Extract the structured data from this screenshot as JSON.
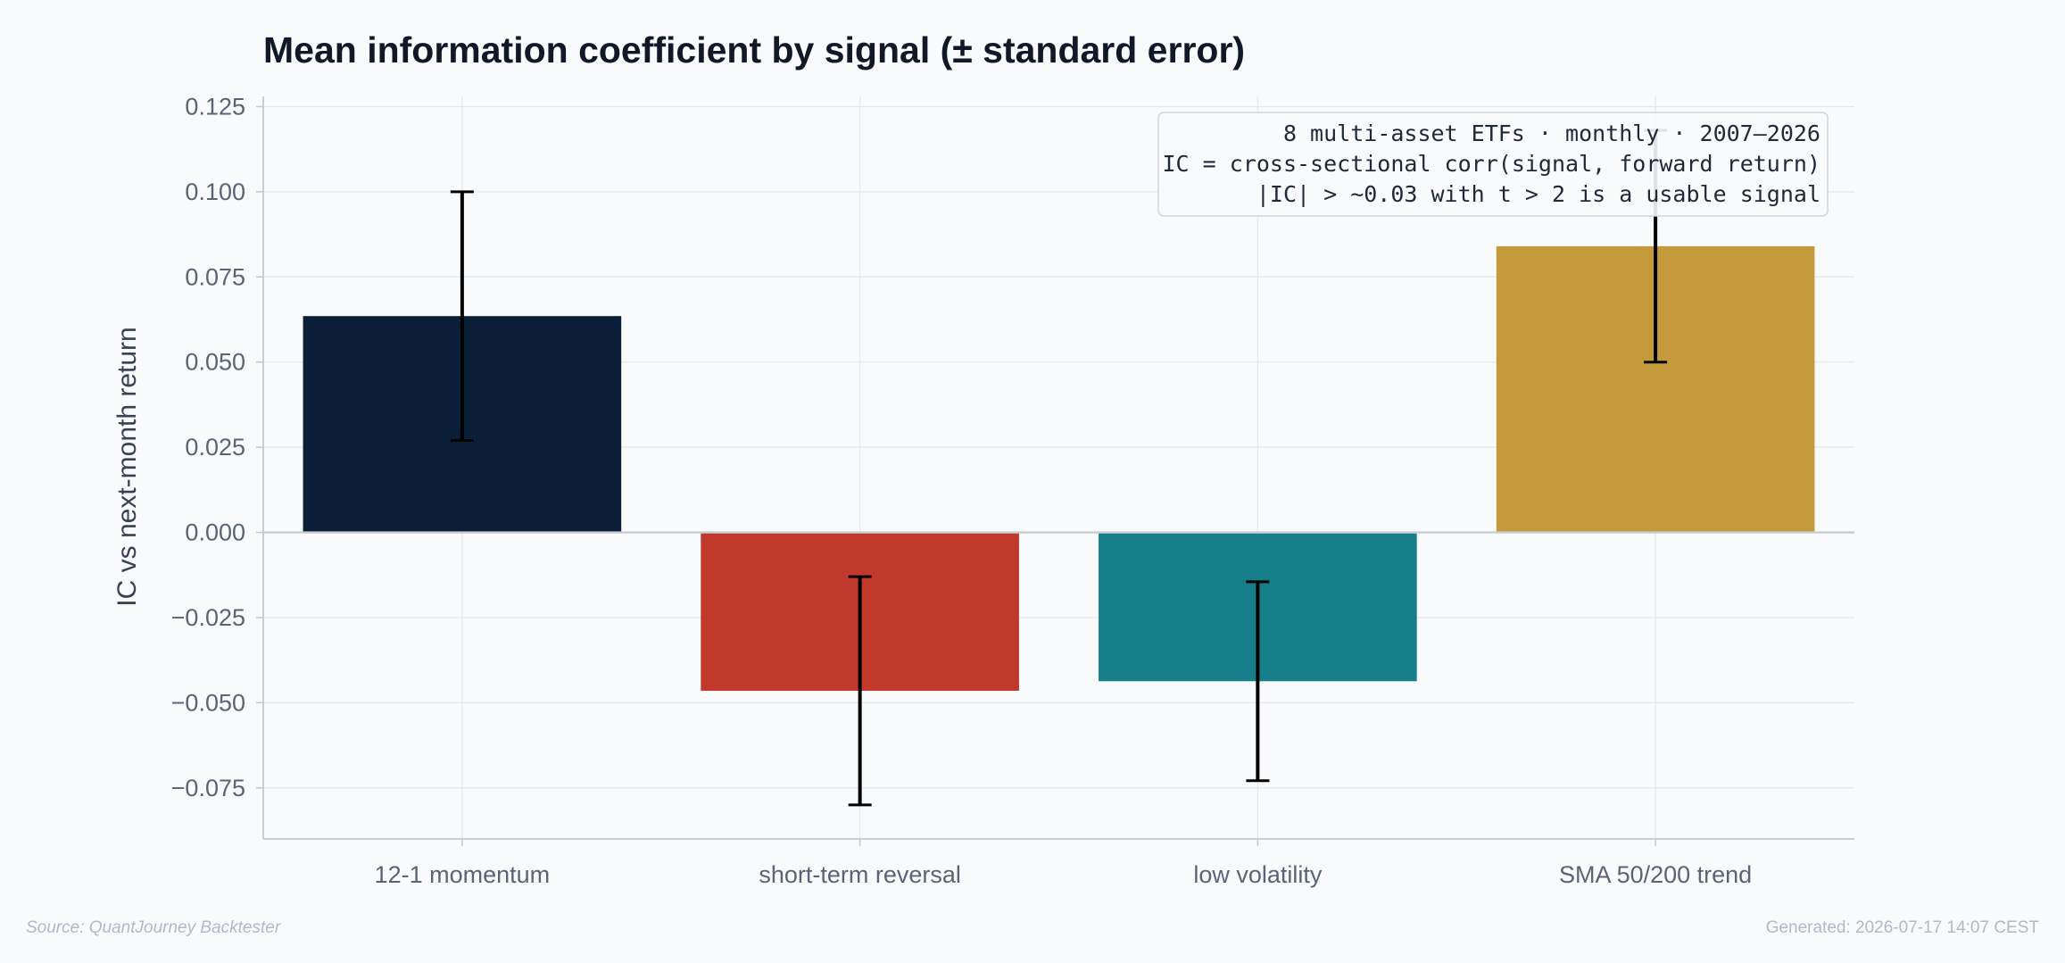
{
  "chart_data": {
    "type": "bar",
    "title": "Mean information coefficient by signal (± standard error)",
    "ylabel": "IC vs next-month return",
    "xlabel": "",
    "categories": [
      "12-1 momentum",
      "short-term reversal",
      "low volatility",
      "SMA 50/200 trend"
    ],
    "values": [
      0.0635,
      -0.0465,
      -0.0437,
      0.084
    ],
    "errors": [
      0.0365,
      0.0335,
      0.0292,
      0.034
    ],
    "colors": [
      "#0b1f38",
      "#c0392b",
      "#177f8a",
      "#c49a3a"
    ],
    "ylim": [
      -0.09,
      0.128
    ],
    "yticks": [
      0.125,
      0.1,
      0.075,
      0.05,
      0.025,
      0.0,
      -0.025,
      -0.05,
      -0.075
    ],
    "ytick_labels": [
      "0.125",
      "0.100",
      "0.075",
      "0.050",
      "0.025",
      "0.000",
      "−0.025",
      "−0.050",
      "−0.075"
    ],
    "grid": true,
    "annotation": {
      "placement": "top-right",
      "lines": [
        "8 multi-asset ETFs · monthly · 2007–2026",
        "IC = cross-sectional corr(signal, forward return)",
        "|IC| > ~0.03 with t > 2 is a usable signal"
      ]
    }
  },
  "footer": {
    "source": "Source: QuantJourney Backtester",
    "generated": "Generated: 2026-07-17 14:07 CEST"
  }
}
